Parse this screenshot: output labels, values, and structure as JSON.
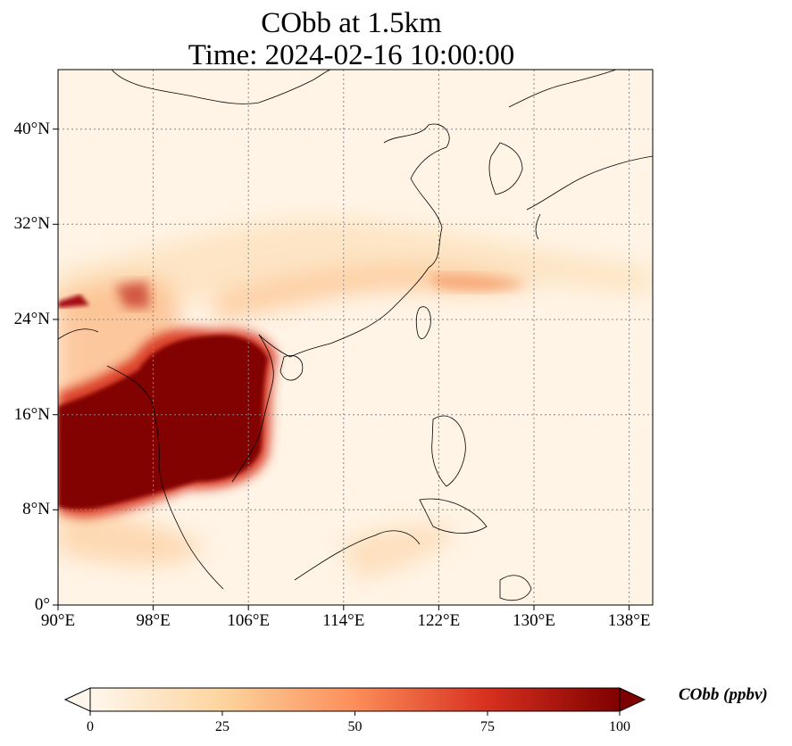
{
  "title": {
    "line1": "CObb at 1.5km",
    "line2": "Time: 2024-02-16 10:00:00"
  },
  "map": {
    "lon_range": [
      90,
      140
    ],
    "lat_range": [
      0,
      45
    ],
    "lon_ticks": [
      "90°E",
      "98°E",
      "106°E",
      "114°E",
      "122°E",
      "130°E",
      "138°E"
    ],
    "lat_ticks": [
      "0°",
      "8°N",
      "16°N",
      "24°N",
      "32°N",
      "40°N"
    ],
    "gridlines": true
  },
  "colorbar": {
    "label": "CObb (ppbv)",
    "ticks": [
      "0",
      "25",
      "50",
      "75",
      "100"
    ],
    "range": [
      0,
      100
    ],
    "colormap": "OrRd",
    "extend": "both",
    "colors": [
      "#fff7ec",
      "#fdd49e",
      "#fc8d59",
      "#d7301f",
      "#7f0000"
    ]
  },
  "chart_data": {
    "type": "heatmap",
    "variable": "CObb",
    "units": "ppbv",
    "level": "1.5km",
    "time": "2024-02-16 10:00:00",
    "xlim": [
      90,
      140
    ],
    "ylim": [
      0,
      45
    ],
    "vmin": 0,
    "vmax": 100
  }
}
